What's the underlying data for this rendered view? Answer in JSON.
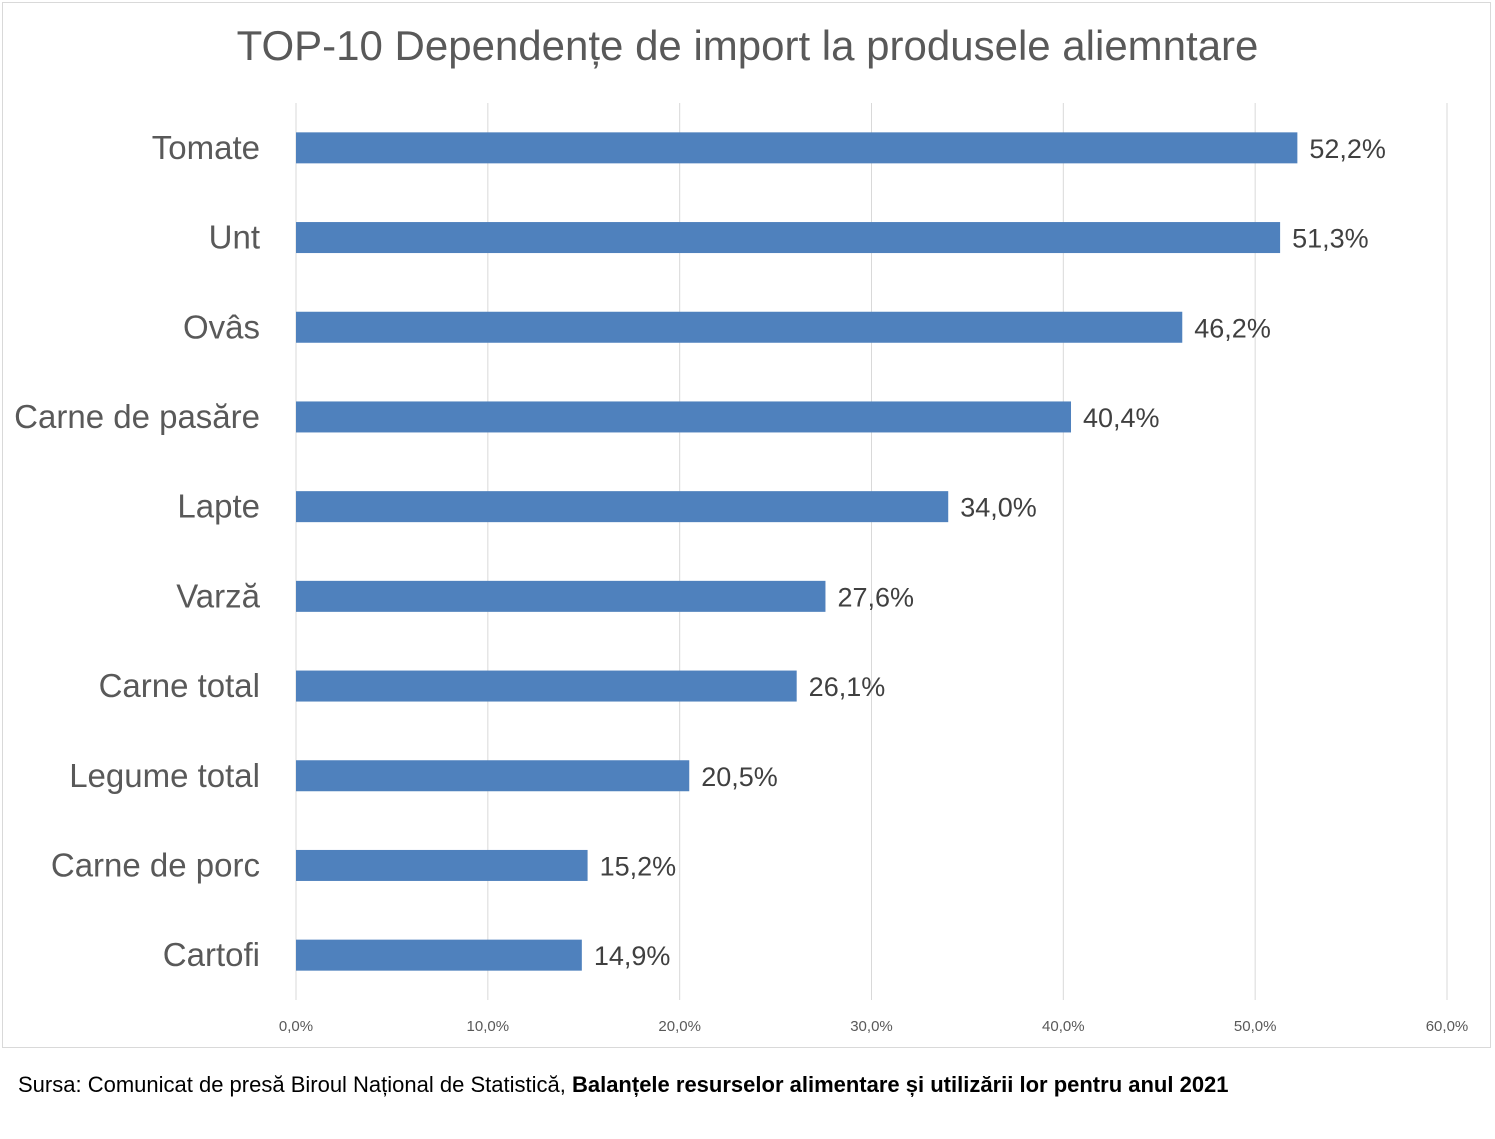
{
  "chart_data": {
    "type": "bar",
    "orientation": "horizontal",
    "title": "TOP-10 Dependențe de import la produsele aliemntare",
    "categories": [
      "Tomate",
      "Unt",
      "Ovâs",
      "Carne de pasăre",
      "Lapte",
      "Varză",
      "Carne total",
      "Legume total",
      "Carne de porc",
      "Cartofi"
    ],
    "values": [
      52.2,
      51.3,
      46.2,
      40.4,
      34.0,
      27.6,
      26.1,
      20.5,
      15.2,
      14.9
    ],
    "value_labels": [
      "52,2%",
      "51,3%",
      "46,2%",
      "40,4%",
      "34,0%",
      "27,6%",
      "26,1%",
      "20,5%",
      "15,2%",
      "14,9%"
    ],
    "x_ticks": [
      0,
      10,
      20,
      30,
      40,
      50,
      60
    ],
    "x_tick_labels": [
      "0,0%",
      "10,0%",
      "20,0%",
      "30,0%",
      "40,0%",
      "50,0%",
      "60,0%"
    ],
    "xlim": [
      0,
      60
    ],
    "grid": true,
    "bar_color": "#4f81bd",
    "gridline_color": "#d9d9d9"
  },
  "source": {
    "prefix": "Sursa: Comunicat de presă Biroul Național de Statistică, ",
    "bold": "Balanțele resurselor alimentare și utilizării lor pentru anul 2021"
  }
}
